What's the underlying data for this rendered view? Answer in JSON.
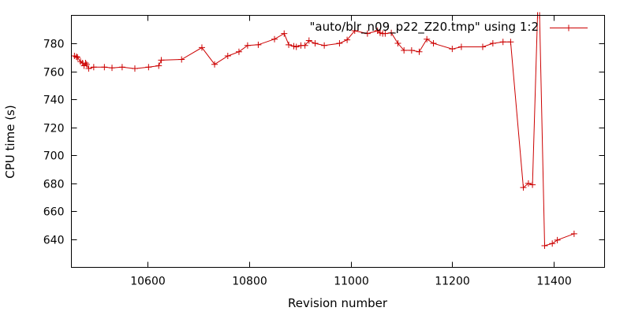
{
  "chart_data": {
    "type": "line",
    "title": "",
    "xlabel": "Revision number",
    "ylabel": "CPU time (s)",
    "xlim": [
      10450,
      11500
    ],
    "ylim": [
      620,
      800
    ],
    "xticks": [
      10600,
      10800,
      11000,
      11200,
      11400
    ],
    "yticks": [
      640,
      660,
      680,
      700,
      720,
      740,
      760,
      780
    ],
    "grid": false,
    "legend_position": "top-right",
    "color": "#cc0000",
    "series": [
      {
        "name": "\"auto/blr_n09_p22_Z20.tmp\" using 1:2",
        "points": [
          [
            10456,
            771
          ],
          [
            10460,
            770.5
          ],
          [
            10462,
            770
          ],
          [
            10468,
            767
          ],
          [
            10472,
            766
          ],
          [
            10475,
            764
          ],
          [
            10478,
            766
          ],
          [
            10480,
            765
          ],
          [
            10484,
            762
          ],
          [
            10494,
            763
          ],
          [
            10515,
            763
          ],
          [
            10530,
            762.5
          ],
          [
            10550,
            763
          ],
          [
            10575,
            762
          ],
          [
            10602,
            763
          ],
          [
            10622,
            764
          ],
          [
            10627,
            768
          ],
          [
            10667,
            768.5
          ],
          [
            10707,
            777
          ],
          [
            10732,
            765
          ],
          [
            10758,
            771
          ],
          [
            10780,
            774
          ],
          [
            10797,
            778.5
          ],
          [
            10818,
            779
          ],
          [
            10850,
            783
          ],
          [
            10869,
            787
          ],
          [
            10878,
            779
          ],
          [
            10888,
            778
          ],
          [
            10893,
            777.5
          ],
          [
            10902,
            778.5
          ],
          [
            10910,
            778.5
          ],
          [
            10918,
            782
          ],
          [
            10930,
            780
          ],
          [
            10948,
            778.5
          ],
          [
            10978,
            780
          ],
          [
            10993,
            782.5
          ],
          [
            11008,
            789
          ],
          [
            11033,
            787
          ],
          [
            11053,
            789
          ],
          [
            11058,
            787.5
          ],
          [
            11063,
            787
          ],
          [
            11068,
            787
          ],
          [
            11080,
            787.5
          ],
          [
            11093,
            780
          ],
          [
            11105,
            775
          ],
          [
            11120,
            775
          ],
          [
            11135,
            774
          ],
          [
            11150,
            783
          ],
          [
            11163,
            780
          ],
          [
            11200,
            776
          ],
          [
            11218,
            777.5
          ],
          [
            11260,
            777.5
          ],
          [
            11280,
            780
          ],
          [
            11300,
            781
          ],
          [
            11315,
            781
          ],
          [
            11340,
            677
          ],
          [
            11350,
            680
          ],
          [
            11358,
            679
          ],
          [
            11368,
            800
          ],
          [
            11372,
            800
          ],
          [
            11382,
            635.5
          ],
          [
            11397,
            637
          ],
          [
            11407,
            639.5
          ],
          [
            11440,
            644
          ]
        ]
      }
    ]
  }
}
